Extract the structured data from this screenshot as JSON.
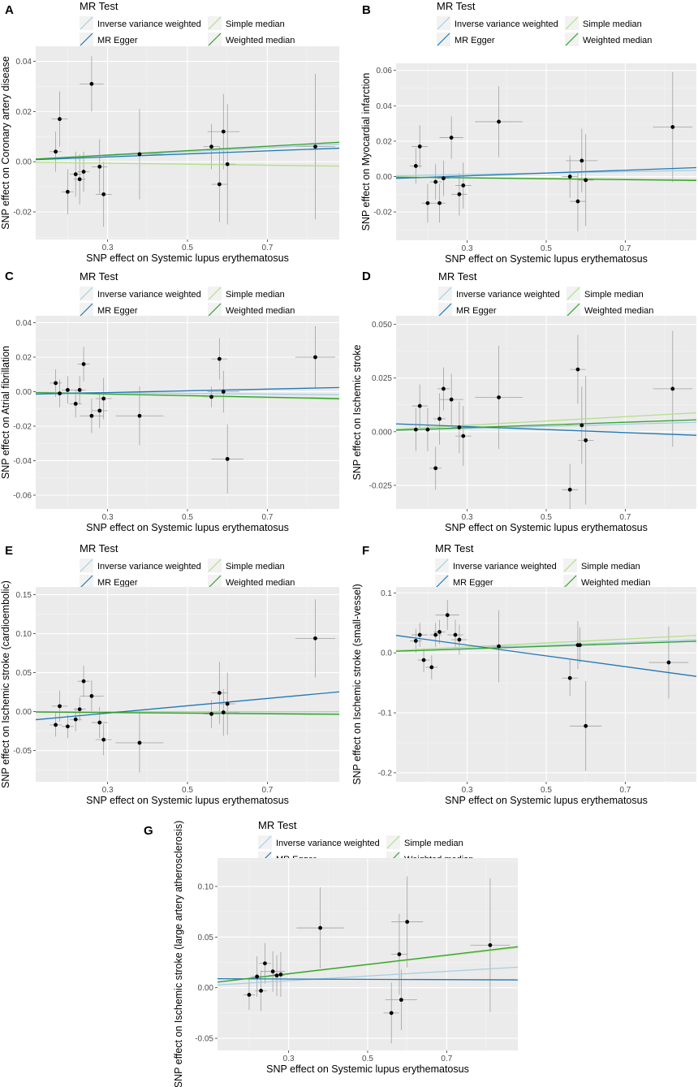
{
  "legend": {
    "title": "MR Test",
    "items": [
      {
        "name": "Inverse variance weighted",
        "color": "#a6cee3"
      },
      {
        "name": "Simple median",
        "color": "#b2df8a"
      },
      {
        "name": "MR Egger",
        "color": "#1f78b4"
      },
      {
        "name": "Weighted median",
        "color": "#33a02c"
      }
    ]
  },
  "chart_data": [
    {
      "panel": "A",
      "type": "scatter",
      "xlabel": "SNP effect on Systemic lupus erythematosus",
      "ylabel": "SNP effect on Coronary artery disease",
      "xlim": [
        0.12,
        0.88
      ],
      "ylim": [
        -0.031,
        0.046
      ],
      "xticks": [
        0.3,
        0.5,
        0.7
      ],
      "xtick_labels": [
        "0.3",
        "0.5",
        "0.7"
      ],
      "yticks": [
        -0.02,
        0,
        0.02,
        0.04
      ],
      "ytick_labels": [
        "-0.02",
        "0.00",
        "0.02",
        "0.04"
      ],
      "points": [
        {
          "x": 0.17,
          "y": 0.004,
          "xse": 0.015,
          "yse": 0.008
        },
        {
          "x": 0.18,
          "y": 0.017,
          "xse": 0.02,
          "yse": 0.011
        },
        {
          "x": 0.2,
          "y": -0.012,
          "xse": 0.015,
          "yse": 0.009
        },
        {
          "x": 0.22,
          "y": -0.005,
          "xse": 0.015,
          "yse": 0.009
        },
        {
          "x": 0.23,
          "y": -0.007,
          "xse": 0.015,
          "yse": 0.01
        },
        {
          "x": 0.24,
          "y": -0.004,
          "xse": 0.015,
          "yse": 0.008
        },
        {
          "x": 0.26,
          "y": 0.031,
          "xse": 0.03,
          "yse": 0.011
        },
        {
          "x": 0.28,
          "y": -0.002,
          "xse": 0.02,
          "yse": 0.011
        },
        {
          "x": 0.29,
          "y": -0.013,
          "xse": 0.02,
          "yse": 0.013
        },
        {
          "x": 0.38,
          "y": 0.003,
          "xse": 0.06,
          "yse": 0.018
        },
        {
          "x": 0.56,
          "y": 0.006,
          "xse": 0.02,
          "yse": 0.009
        },
        {
          "x": 0.58,
          "y": -0.009,
          "xse": 0.02,
          "yse": 0.015
        },
        {
          "x": 0.59,
          "y": 0.012,
          "xse": 0.04,
          "yse": 0.015
        },
        {
          "x": 0.6,
          "y": -0.001,
          "xse": 0.02,
          "yse": 0.024
        },
        {
          "x": 0.82,
          "y": 0.006,
          "xse": 0.05,
          "yse": 0.029
        }
      ],
      "lines": [
        {
          "method": "Inverse variance weighted",
          "slope": 0.008,
          "intercept": 0
        },
        {
          "method": "Simple median",
          "slope": -0.002,
          "intercept": 0
        },
        {
          "method": "MR Egger",
          "slope": 0.006,
          "intercept": 0.0001
        },
        {
          "method": "Weighted median",
          "slope": 0.0088,
          "intercept": 0
        }
      ]
    },
    {
      "panel": "B",
      "type": "scatter",
      "xlabel": "SNP effect on Systemic lupus erythematosus",
      "ylabel": "SNP effect on Myocardial infarction",
      "xlim": [
        0.12,
        0.88
      ],
      "ylim": [
        -0.036,
        0.064
      ],
      "xticks": [
        0.3,
        0.5,
        0.7
      ],
      "xtick_labels": [
        "0.3",
        "0.5",
        "0.7"
      ],
      "yticks": [
        -0.02,
        0,
        0.02,
        0.04,
        0.06
      ],
      "ytick_labels": [
        "-0.02",
        "0.00",
        "0.02",
        "0.04",
        "0.06"
      ],
      "points": [
        {
          "x": 0.17,
          "y": 0.006,
          "xse": 0.015,
          "yse": 0.01
        },
        {
          "x": 0.18,
          "y": 0.017,
          "xse": 0.02,
          "yse": 0.012
        },
        {
          "x": 0.2,
          "y": -0.015,
          "xse": 0.015,
          "yse": 0.011
        },
        {
          "x": 0.22,
          "y": -0.003,
          "xse": 0.015,
          "yse": 0.01
        },
        {
          "x": 0.23,
          "y": -0.015,
          "xse": 0.015,
          "yse": 0.011
        },
        {
          "x": 0.24,
          "y": -0.001,
          "xse": 0.015,
          "yse": 0.01
        },
        {
          "x": 0.26,
          "y": 0.022,
          "xse": 0.03,
          "yse": 0.012
        },
        {
          "x": 0.28,
          "y": -0.01,
          "xse": 0.02,
          "yse": 0.012
        },
        {
          "x": 0.29,
          "y": -0.005,
          "xse": 0.02,
          "yse": 0.013
        },
        {
          "x": 0.38,
          "y": 0.031,
          "xse": 0.06,
          "yse": 0.02
        },
        {
          "x": 0.56,
          "y": 0.0,
          "xse": 0.02,
          "yse": 0.012
        },
        {
          "x": 0.58,
          "y": -0.014,
          "xse": 0.02,
          "yse": 0.017
        },
        {
          "x": 0.59,
          "y": 0.009,
          "xse": 0.04,
          "yse": 0.018
        },
        {
          "x": 0.6,
          "y": -0.002,
          "xse": 0.02,
          "yse": 0.026
        },
        {
          "x": 0.82,
          "y": 0.028,
          "xse": 0.05,
          "yse": 0.031
        }
      ],
      "lines": [
        {
          "method": "Inverse variance weighted",
          "slope": 0.004,
          "intercept": 0
        },
        {
          "method": "Simple median",
          "slope": -0.002,
          "intercept": 0
        },
        {
          "method": "MR Egger",
          "slope": 0.008,
          "intercept": -0.002
        },
        {
          "method": "Weighted median",
          "slope": -0.0025,
          "intercept": 0
        }
      ]
    },
    {
      "panel": "C",
      "type": "scatter",
      "xlabel": "SNP effect on Systemic lupus erythematosus",
      "ylabel": "SNP effect on Atrial fibrillation",
      "xlim": [
        0.12,
        0.88
      ],
      "ylim": [
        -0.068,
        0.044
      ],
      "xticks": [
        0.3,
        0.5,
        0.7
      ],
      "xtick_labels": [
        "0.3",
        "0.5",
        "0.7"
      ],
      "yticks": [
        -0.06,
        -0.04,
        -0.02,
        0,
        0.02,
        0.04
      ],
      "ytick_labels": [
        "-0.06",
        "-0.04",
        "-0.02",
        "0.00",
        "0.02",
        "0.04"
      ],
      "points": [
        {
          "x": 0.17,
          "y": 0.005,
          "xse": 0.015,
          "yse": 0.008
        },
        {
          "x": 0.18,
          "y": -0.001,
          "xse": 0.02,
          "yse": 0.008
        },
        {
          "x": 0.2,
          "y": 0.001,
          "xse": 0.015,
          "yse": 0.008
        },
        {
          "x": 0.22,
          "y": -0.007,
          "xse": 0.015,
          "yse": 0.008
        },
        {
          "x": 0.23,
          "y": 0.001,
          "xse": 0.015,
          "yse": 0.008
        },
        {
          "x": 0.24,
          "y": 0.016,
          "xse": 0.015,
          "yse": 0.01
        },
        {
          "x": 0.26,
          "y": -0.014,
          "xse": 0.03,
          "yse": 0.01
        },
        {
          "x": 0.28,
          "y": -0.011,
          "xse": 0.02,
          "yse": 0.01
        },
        {
          "x": 0.29,
          "y": -0.004,
          "xse": 0.02,
          "yse": 0.012
        },
        {
          "x": 0.38,
          "y": -0.014,
          "xse": 0.06,
          "yse": 0.017
        },
        {
          "x": 0.56,
          "y": -0.003,
          "xse": 0.02,
          "yse": 0.006
        },
        {
          "x": 0.58,
          "y": 0.019,
          "xse": 0.02,
          "yse": 0.012
        },
        {
          "x": 0.59,
          "y": 0.0,
          "xse": 0.04,
          "yse": 0.012
        },
        {
          "x": 0.6,
          "y": -0.039,
          "xse": 0.04,
          "yse": 0.02
        },
        {
          "x": 0.82,
          "y": 0.02,
          "xse": 0.05,
          "yse": 0.018
        }
      ],
      "lines": [
        {
          "method": "Inverse variance weighted",
          "slope": -0.002,
          "intercept": 0
        },
        {
          "method": "Simple median",
          "slope": -0.005,
          "intercept": 0
        },
        {
          "method": "MR Egger",
          "slope": 0.005,
          "intercept": -0.002
        },
        {
          "method": "Weighted median",
          "slope": -0.0045,
          "intercept": 0
        }
      ]
    },
    {
      "panel": "D",
      "type": "scatter",
      "xlabel": "SNP effect on Systemic lupus erythematosus",
      "ylabel": "SNP effect on Ischemic stroke",
      "xlim": [
        0.12,
        0.88
      ],
      "ylim": [
        -0.036,
        0.054
      ],
      "xticks": [
        0.3,
        0.5,
        0.7
      ],
      "xtick_labels": [
        "0.3",
        "0.5",
        "0.7"
      ],
      "yticks": [
        -0.025,
        0,
        0.025,
        0.05
      ],
      "ytick_labels": [
        "-0.025",
        "0.000",
        "0.025",
        "0.050"
      ],
      "points": [
        {
          "x": 0.17,
          "y": 0.001,
          "xse": 0.015,
          "yse": 0.01
        },
        {
          "x": 0.18,
          "y": 0.012,
          "xse": 0.02,
          "yse": 0.01
        },
        {
          "x": 0.2,
          "y": 0.001,
          "xse": 0.015,
          "yse": 0.01
        },
        {
          "x": 0.22,
          "y": -0.017,
          "xse": 0.015,
          "yse": 0.01
        },
        {
          "x": 0.23,
          "y": 0.006,
          "xse": 0.015,
          "yse": 0.012
        },
        {
          "x": 0.24,
          "y": 0.02,
          "xse": 0.015,
          "yse": 0.01
        },
        {
          "x": 0.26,
          "y": 0.015,
          "xse": 0.03,
          "yse": 0.012
        },
        {
          "x": 0.28,
          "y": 0.002,
          "xse": 0.02,
          "yse": 0.012
        },
        {
          "x": 0.29,
          "y": -0.002,
          "xse": 0.02,
          "yse": 0.014
        },
        {
          "x": 0.38,
          "y": 0.016,
          "xse": 0.06,
          "yse": 0.024
        },
        {
          "x": 0.56,
          "y": -0.027,
          "xse": 0.02,
          "yse": 0.012
        },
        {
          "x": 0.58,
          "y": 0.029,
          "xse": 0.02,
          "yse": 0.016
        },
        {
          "x": 0.59,
          "y": 0.003,
          "xse": 0.04,
          "yse": 0.018
        },
        {
          "x": 0.6,
          "y": -0.004,
          "xse": 0.02,
          "yse": 0.03
        },
        {
          "x": 0.82,
          "y": 0.02,
          "xse": 0.05,
          "yse": 0.027
        }
      ],
      "lines": [
        {
          "method": "Inverse variance weighted",
          "slope": 0.005,
          "intercept": 0
        },
        {
          "method": "Simple median",
          "slope": 0.01,
          "intercept": 0
        },
        {
          "method": "MR Egger",
          "slope": -0.007,
          "intercept": 0.0045
        },
        {
          "method": "Weighted median",
          "slope": 0.0063,
          "intercept": 0
        }
      ]
    },
    {
      "panel": "E",
      "type": "scatter",
      "xlabel": "SNP effect on Systemic lupus erythematosus",
      "ylabel": "SNP effect on Ischemic stroke (cardioembolic)",
      "xlim": [
        0.12,
        0.88
      ],
      "ylim": [
        -0.09,
        0.16
      ],
      "xticks": [
        0.3,
        0.5,
        0.7
      ],
      "xtick_labels": [
        "0.3",
        "0.5",
        "0.7"
      ],
      "yticks": [
        -0.05,
        0,
        0.05,
        0.1,
        0.15
      ],
      "ytick_labels": [
        "-0.05",
        "0.00",
        "0.05",
        "0.10",
        "0.15"
      ],
      "points": [
        {
          "x": 0.17,
          "y": -0.017,
          "xse": 0.015,
          "yse": 0.015
        },
        {
          "x": 0.18,
          "y": 0.007,
          "xse": 0.02,
          "yse": 0.02
        },
        {
          "x": 0.2,
          "y": -0.019,
          "xse": 0.015,
          "yse": 0.015
        },
        {
          "x": 0.22,
          "y": -0.01,
          "xse": 0.015,
          "yse": 0.015
        },
        {
          "x": 0.23,
          "y": 0.003,
          "xse": 0.015,
          "yse": 0.015
        },
        {
          "x": 0.24,
          "y": 0.039,
          "xse": 0.015,
          "yse": 0.02
        },
        {
          "x": 0.26,
          "y": 0.02,
          "xse": 0.03,
          "yse": 0.02
        },
        {
          "x": 0.28,
          "y": -0.014,
          "xse": 0.02,
          "yse": 0.02
        },
        {
          "x": 0.29,
          "y": -0.036,
          "xse": 0.02,
          "yse": 0.02
        },
        {
          "x": 0.38,
          "y": -0.04,
          "xse": 0.06,
          "yse": 0.038
        },
        {
          "x": 0.56,
          "y": -0.003,
          "xse": 0.02,
          "yse": 0.018
        },
        {
          "x": 0.58,
          "y": 0.024,
          "xse": 0.02,
          "yse": 0.04
        },
        {
          "x": 0.59,
          "y": -0.001,
          "xse": 0.04,
          "yse": 0.03
        },
        {
          "x": 0.6,
          "y": 0.01,
          "xse": 0.02,
          "yse": 0.04
        },
        {
          "x": 0.82,
          "y": 0.094,
          "xse": 0.05,
          "yse": 0.05
        }
      ],
      "lines": [
        {
          "method": "Inverse variance weighted",
          "slope": 0.0,
          "intercept": 0
        },
        {
          "method": "Simple median",
          "slope": -0.003,
          "intercept": 0
        },
        {
          "method": "MR Egger",
          "slope": 0.047,
          "intercept": -0.016
        },
        {
          "method": "Weighted median",
          "slope": -0.004,
          "intercept": 0
        }
      ]
    },
    {
      "panel": "F",
      "type": "scatter",
      "xlabel": "SNP effect on Systemic lupus erythematosus",
      "ylabel": "SNP effect on Ischemic stroke (small-vessel)",
      "xlim": [
        0.12,
        0.88
      ],
      "ylim": [
        -0.215,
        0.11
      ],
      "xticks": [
        0.3,
        0.5,
        0.7
      ],
      "xtick_labels": [
        "0.3",
        "0.5",
        "0.7"
      ],
      "yticks": [
        -0.2,
        -0.1,
        0,
        0.1
      ],
      "ytick_labels": [
        "-0.2",
        "-0.1",
        "0.0",
        "0.1"
      ],
      "points": [
        {
          "x": 0.17,
          "y": 0.02,
          "xse": 0.015,
          "yse": 0.02
        },
        {
          "x": 0.18,
          "y": 0.03,
          "xse": 0.02,
          "yse": 0.02
        },
        {
          "x": 0.19,
          "y": -0.012,
          "xse": 0.015,
          "yse": 0.02
        },
        {
          "x": 0.21,
          "y": -0.024,
          "xse": 0.015,
          "yse": 0.02
        },
        {
          "x": 0.22,
          "y": 0.03,
          "xse": 0.015,
          "yse": 0.02
        },
        {
          "x": 0.23,
          "y": 0.035,
          "xse": 0.015,
          "yse": 0.02
        },
        {
          "x": 0.25,
          "y": 0.063,
          "xse": 0.03,
          "yse": 0.025
        },
        {
          "x": 0.27,
          "y": 0.03,
          "xse": 0.02,
          "yse": 0.025
        },
        {
          "x": 0.28,
          "y": 0.022,
          "xse": 0.02,
          "yse": 0.025
        },
        {
          "x": 0.38,
          "y": 0.011,
          "xse": 0.06,
          "yse": 0.06
        },
        {
          "x": 0.56,
          "y": -0.042,
          "xse": 0.02,
          "yse": 0.03
        },
        {
          "x": 0.58,
          "y": 0.013,
          "xse": 0.02,
          "yse": 0.04
        },
        {
          "x": 0.585,
          "y": 0.013,
          "xse": 0.04,
          "yse": 0.03
        },
        {
          "x": 0.6,
          "y": -0.122,
          "xse": 0.04,
          "yse": 0.075
        },
        {
          "x": 0.81,
          "y": -0.016,
          "xse": 0.05,
          "yse": 0.06
        }
      ],
      "lines": [
        {
          "method": "Inverse variance weighted",
          "slope": 0.025,
          "intercept": 0
        },
        {
          "method": "Simple median",
          "slope": 0.033,
          "intercept": 0
        },
        {
          "method": "MR Egger",
          "slope": -0.09,
          "intercept": 0.04
        },
        {
          "method": "Weighted median",
          "slope": 0.022,
          "intercept": 0
        }
      ]
    },
    {
      "panel": "G",
      "type": "scatter",
      "xlabel": "SNP effect on Systemic lupus erythematosus",
      "ylabel": "SNP effect on Ischemic stroke (large artery atherosclerosis)",
      "xlim": [
        0.12,
        0.88
      ],
      "ylim": [
        -0.062,
        0.128
      ],
      "xticks": [
        0.3,
        0.5,
        0.7
      ],
      "xtick_labels": [
        "0.3",
        "0.5",
        "0.7"
      ],
      "yticks": [
        -0.05,
        0,
        0.05,
        0.1
      ],
      "ytick_labels": [
        "-0.05",
        "0.00",
        "0.05",
        "0.10"
      ],
      "points": [
        {
          "x": 0.2,
          "y": -0.007,
          "xse": 0.015,
          "yse": 0.015
        },
        {
          "x": 0.22,
          "y": 0.011,
          "xse": 0.015,
          "yse": 0.02
        },
        {
          "x": 0.23,
          "y": -0.003,
          "xse": 0.015,
          "yse": 0.02
        },
        {
          "x": 0.24,
          "y": 0.024,
          "xse": 0.015,
          "yse": 0.02
        },
        {
          "x": 0.26,
          "y": 0.016,
          "xse": 0.03,
          "yse": 0.02
        },
        {
          "x": 0.27,
          "y": 0.012,
          "xse": 0.02,
          "yse": 0.02
        },
        {
          "x": 0.28,
          "y": 0.013,
          "xse": 0.02,
          "yse": 0.022
        },
        {
          "x": 0.38,
          "y": 0.059,
          "xse": 0.06,
          "yse": 0.04
        },
        {
          "x": 0.56,
          "y": -0.025,
          "xse": 0.02,
          "yse": 0.03
        },
        {
          "x": 0.58,
          "y": 0.033,
          "xse": 0.02,
          "yse": 0.04
        },
        {
          "x": 0.585,
          "y": -0.012,
          "xse": 0.04,
          "yse": 0.03
        },
        {
          "x": 0.6,
          "y": 0.065,
          "xse": 0.04,
          "yse": 0.045
        },
        {
          "x": 0.81,
          "y": 0.042,
          "xse": 0.05,
          "yse": 0.066
        }
      ],
      "lines": [
        {
          "method": "Inverse variance weighted",
          "slope": 0.023,
          "intercept": 0
        },
        {
          "method": "Simple median",
          "slope": 0.045,
          "intercept": 0
        },
        {
          "method": "MR Egger",
          "slope": -0.0015,
          "intercept": 0.009
        },
        {
          "method": "Weighted median",
          "slope": 0.046,
          "intercept": 0
        }
      ]
    }
  ]
}
